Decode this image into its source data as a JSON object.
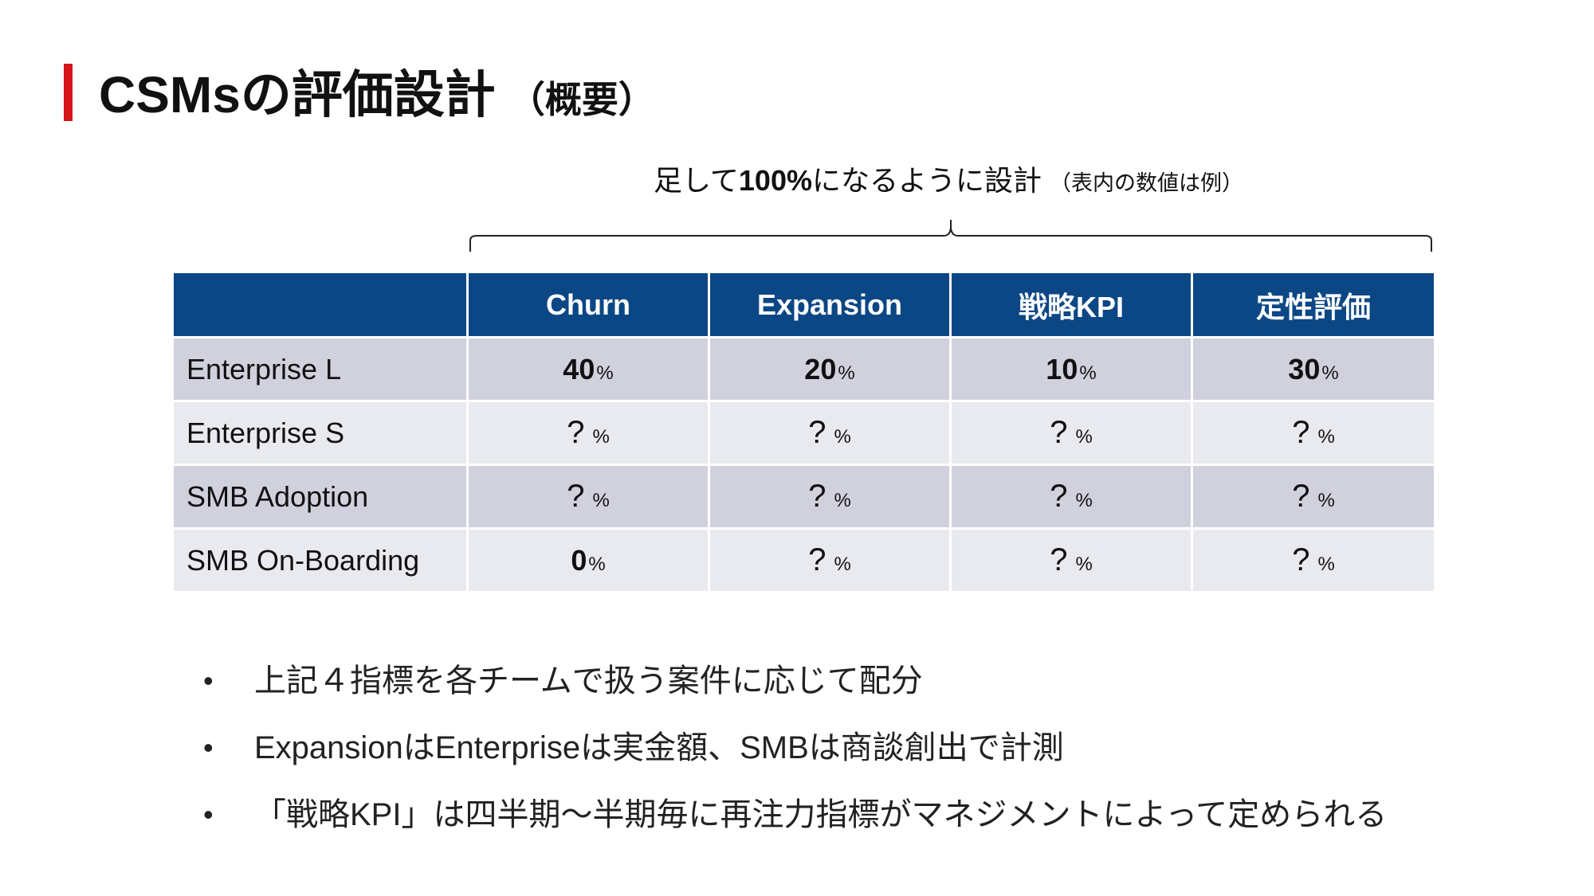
{
  "colors": {
    "accent_bar": "#d7141a",
    "header_bg": "#0c4785",
    "row_odd": "#d0d1dd",
    "row_even": "#e9eaef"
  },
  "title": {
    "main": "CSMsの評価設計",
    "sub": "（概要）"
  },
  "caption": {
    "lead": "足して",
    "bold": "100%",
    "tail": "になるように設計",
    "note": "（表内の数値は例）"
  },
  "table": {
    "columns": [
      "",
      "Churn",
      "Expansion",
      "戦略KPI",
      "定性評価"
    ],
    "rows": [
      {
        "label": "Enterprise L",
        "cells": [
          {
            "value": "40",
            "unit": "%"
          },
          {
            "value": "20",
            "unit": "%"
          },
          {
            "value": "10",
            "unit": "%"
          },
          {
            "value": "30",
            "unit": "%"
          }
        ]
      },
      {
        "label": "Enterprise S",
        "cells": [
          {
            "value": "?",
            "unit": "%"
          },
          {
            "value": "?",
            "unit": "%"
          },
          {
            "value": "?",
            "unit": "%"
          },
          {
            "value": "?",
            "unit": "%"
          }
        ]
      },
      {
        "label": "SMB Adoption",
        "cells": [
          {
            "value": "?",
            "unit": "%"
          },
          {
            "value": "?",
            "unit": "%"
          },
          {
            "value": "?",
            "unit": "%"
          },
          {
            "value": "?",
            "unit": "%"
          }
        ]
      },
      {
        "label": "SMB On-Boarding",
        "cells": [
          {
            "value": "0",
            "unit": "%"
          },
          {
            "value": "?",
            "unit": "%"
          },
          {
            "value": "?",
            "unit": "%"
          },
          {
            "value": "?",
            "unit": "%"
          }
        ]
      }
    ]
  },
  "bullets": [
    {
      "marker": "•",
      "text": "上記４指標を各チームで扱う案件に応じて配分"
    },
    {
      "marker": "•",
      "text": "ExpansionはEnterpriseは実金額、SMBは商談創出で計測"
    },
    {
      "marker": "•",
      "text": "「戦略KPI」は四半期〜半期毎に再注力指標がマネジメントによって定められる"
    }
  ]
}
